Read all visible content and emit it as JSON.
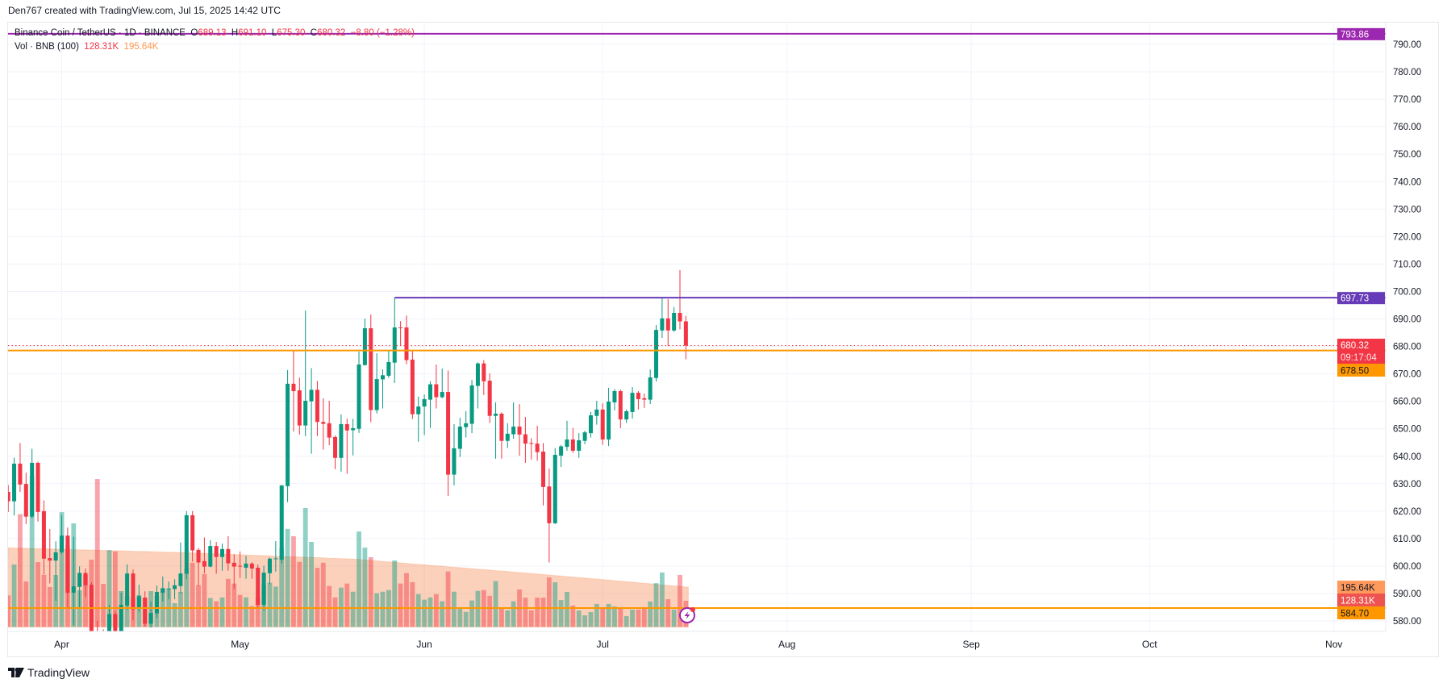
{
  "header": {
    "credit": "Den767 created with TradingView.com, Jul 15, 2025 14:42 UTC"
  },
  "legend": {
    "symbol": "Binance Coin / TetherUS · 1D · BINANCE",
    "o_label": "O",
    "o": "689.13",
    "h_label": "H",
    "h": "691.10",
    "l_label": "L",
    "l": "675.30",
    "c_label": "C",
    "c": "680.32",
    "change": "−8.80 (−1.28%)",
    "vol_title": "Vol · BNB (100)",
    "vol": "128.31K",
    "vol_ma": "195.64K"
  },
  "footer": {
    "logo_text": "TradingView"
  },
  "colors": {
    "up": "#089981",
    "down": "#f23645",
    "orange": "#ff9800",
    "purple_top": "#9c27b0",
    "purple_level": "#673ab7",
    "vol_ma_fill": "rgba(247,124,60,0.35)"
  },
  "chart_data": {
    "type": "candlestick",
    "symbol": "BNBUSDT",
    "interval": "1D",
    "ylim": [
      577.8,
      796
    ],
    "grid": true,
    "price_axis": {
      "ticks": [
        "790.00",
        "780.00",
        "770.00",
        "760.00",
        "750.00",
        "740.00",
        "730.00",
        "720.00",
        "710.00",
        "700.00",
        "690.00",
        "680.00",
        "670.00",
        "660.00",
        "650.00",
        "640.00",
        "630.00",
        "620.00",
        "610.00",
        "600.00",
        "590.00",
        "580.00"
      ]
    },
    "date_axis": [
      {
        "label": "Apr",
        "date": "2025-04-01"
      },
      {
        "label": "May",
        "date": "2025-05-01"
      },
      {
        "label": "Jun",
        "date": "2025-06-01"
      },
      {
        "label": "Jul",
        "date": "2025-07-01"
      },
      {
        "label": "Aug",
        "date": "2025-08-01"
      },
      {
        "label": "Sep",
        "date": "2025-09-01"
      },
      {
        "label": "Oct",
        "date": "2025-10-01"
      },
      {
        "label": "Nov",
        "date": "2025-11-01"
      }
    ],
    "horizontal_lines": [
      {
        "price": 793.86,
        "label": "793.86",
        "color": "#9c27b0"
      },
      {
        "price": 697.73,
        "label": "697.73",
        "color": "#673ab7",
        "from_date": "2025-05-27"
      },
      {
        "price": 678.5,
        "label": "678.50",
        "color": "#ff9800"
      },
      {
        "price": 584.7,
        "label": "584.70",
        "color": "#ff9800"
      }
    ],
    "last_price": {
      "price": 680.32,
      "label": "680.32",
      "countdown": "09:17:04"
    },
    "volume_labels": {
      "volume": "128.31K",
      "volume_ma": "195.64K"
    },
    "columns": [
      "date",
      "open",
      "high",
      "low",
      "close",
      "volume_k",
      "volume_ma_k"
    ],
    "candles": [
      [
        "2025-03-23",
        627,
        629.5,
        619.7,
        623.6,
        155,
        388
      ],
      [
        "2025-03-24",
        623.6,
        639.5,
        618.4,
        637.3,
        306,
        387
      ],
      [
        "2025-03-25",
        637.3,
        644.8,
        627,
        629.7,
        553,
        386
      ],
      [
        "2025-03-26",
        629.9,
        634,
        615.3,
        618,
        223,
        386
      ],
      [
        "2025-03-27",
        618,
        642.7,
        617.4,
        637.6,
        741,
        385
      ],
      [
        "2025-03-28",
        637.6,
        638,
        616.2,
        619.7,
        318,
        384
      ],
      [
        "2025-03-29",
        620,
        623.9,
        597,
        602.7,
        256,
        383
      ],
      [
        "2025-03-30",
        602.9,
        613.5,
        593.7,
        602,
        196,
        382
      ],
      [
        "2025-03-31",
        602,
        609,
        587.4,
        605,
        255,
        382
      ],
      [
        "2025-04-01",
        605,
        618.5,
        604.5,
        611.1,
        563,
        381
      ],
      [
        "2025-04-02",
        611.1,
        614,
        584.9,
        590.3,
        399,
        380
      ],
      [
        "2025-04-03",
        590.3,
        610.7,
        578.5,
        592.6,
        508,
        379
      ],
      [
        "2025-04-04",
        592.4,
        599.9,
        584.9,
        597.5,
        180,
        378
      ],
      [
        "2025-04-05",
        597.5,
        599.1,
        588.8,
        593,
        256,
        378
      ],
      [
        "2025-04-06",
        593.2,
        594,
        565,
        574,
        330,
        377
      ],
      [
        "2025-04-07",
        574,
        580,
        555,
        566,
        725,
        376
      ],
      [
        "2025-04-08",
        575,
        577,
        565,
        570,
        211,
        375
      ],
      [
        "2025-04-09",
        570,
        585.9,
        568,
        582.5,
        377,
        374
      ],
      [
        "2025-04-10",
        582.5,
        583.6,
        572,
        575,
        370,
        374
      ],
      [
        "2025-04-11",
        575,
        590.3,
        573,
        585.9,
        176,
        373
      ],
      [
        "2025-04-12",
        585.6,
        600.6,
        584,
        597.3,
        152,
        372
      ],
      [
        "2025-04-13",
        597.3,
        598.8,
        580.3,
        584.2,
        144,
        371
      ],
      [
        "2025-04-14",
        584.5,
        593.2,
        583.4,
        589,
        156,
        370
      ],
      [
        "2025-04-15",
        588.5,
        590.8,
        578,
        579,
        144,
        370
      ],
      [
        "2025-04-16",
        579,
        587.1,
        577.6,
        582.9,
        176,
        369
      ],
      [
        "2025-04-17",
        582.8,
        592.9,
        581,
        590.6,
        152,
        368
      ],
      [
        "2025-04-18",
        590.3,
        596.2,
        587.1,
        591.8,
        192,
        367
      ],
      [
        "2025-04-19",
        591.6,
        594.4,
        587.9,
        591.8,
        188,
        366
      ],
      [
        "2025-04-20",
        591.6,
        595.2,
        587.9,
        593,
        117,
        366
      ],
      [
        "2025-04-21",
        592.7,
        608.6,
        590,
        597.3,
        172,
        365
      ],
      [
        "2025-04-22",
        597.2,
        620,
        595.2,
        618.5,
        287,
        364
      ],
      [
        "2025-04-23",
        618.5,
        620,
        601.6,
        605.7,
        315,
        363
      ],
      [
        "2025-04-24",
        605.9,
        606.6,
        592.7,
        601.3,
        205,
        362
      ],
      [
        "2025-04-25",
        601.8,
        610.4,
        597.4,
        599.8,
        260,
        361
      ],
      [
        "2025-04-26",
        599.8,
        609.4,
        599.6,
        607.3,
        142,
        360
      ],
      [
        "2025-04-27",
        607.3,
        608.8,
        597.2,
        603.3,
        126,
        358
      ],
      [
        "2025-04-28",
        603.3,
        608.2,
        598.3,
        606.2,
        145,
        357
      ],
      [
        "2025-04-29",
        606.2,
        610.9,
        598.3,
        601,
        236,
        356
      ],
      [
        "2025-04-30",
        601.2,
        604.3,
        591.6,
        599.8,
        213,
        355
      ],
      [
        "2025-05-01",
        600.1,
        605.3,
        595.7,
        600,
        157,
        354
      ],
      [
        "2025-05-02",
        599.4,
        603.7,
        595.4,
        600.9,
        145,
        353
      ],
      [
        "2025-05-03",
        600.9,
        601.4,
        595.4,
        599.1,
        102,
        352
      ],
      [
        "2025-05-04",
        599.4,
        600.6,
        584.9,
        585.9,
        145,
        351
      ],
      [
        "2025-05-05",
        585.9,
        600.1,
        583.7,
        597.6,
        205,
        350
      ],
      [
        "2025-05-06",
        597.4,
        603.1,
        593.4,
        602.7,
        217,
        349
      ],
      [
        "2025-05-07",
        602.5,
        609.1,
        598,
        602.8,
        198,
        347
      ],
      [
        "2025-05-08",
        602.3,
        629.4,
        600.9,
        629.4,
        385,
        346
      ],
      [
        "2025-05-09",
        629.1,
        671.4,
        623.3,
        666.4,
        481,
        345
      ],
      [
        "2025-05-10",
        666.4,
        678.7,
        649,
        663.7,
        445,
        344
      ],
      [
        "2025-05-11",
        664,
        668.6,
        647.9,
        651.2,
        319,
        343
      ],
      [
        "2025-05-12",
        651.2,
        693.1,
        647.3,
        660.2,
        583,
        342
      ],
      [
        "2025-05-13",
        660,
        672.1,
        640.9,
        664.2,
        417,
        341
      ],
      [
        "2025-05-14",
        664.2,
        667.4,
        647.3,
        652.5,
        290,
        340
      ],
      [
        "2025-05-15",
        652.5,
        661.1,
        642.4,
        651.8,
        315,
        339
      ],
      [
        "2025-05-16",
        652,
        660.2,
        644,
        646.8,
        201,
        337
      ],
      [
        "2025-05-17",
        647,
        647.5,
        635.3,
        639.4,
        145,
        336
      ],
      [
        "2025-05-18",
        639.4,
        655.2,
        634.4,
        651.7,
        193,
        335
      ],
      [
        "2025-05-19",
        651.7,
        653.7,
        633.6,
        649.4,
        213,
        334
      ],
      [
        "2025-05-20",
        649.5,
        653.6,
        640.3,
        650.2,
        173,
        333
      ],
      [
        "2025-05-21",
        650,
        678.1,
        648.5,
        673.4,
        468,
        331
      ],
      [
        "2025-05-22",
        673.2,
        690.1,
        673,
        686.6,
        389,
        328
      ],
      [
        "2025-05-23",
        686.6,
        691.6,
        652.4,
        656.8,
        342,
        326
      ],
      [
        "2025-05-24",
        656.8,
        677.5,
        655.6,
        668.1,
        165,
        324
      ],
      [
        "2025-05-25",
        668,
        671.6,
        657.4,
        669.5,
        173,
        321
      ],
      [
        "2025-05-26",
        669.3,
        678.4,
        668.5,
        674.3,
        181,
        319
      ],
      [
        "2025-05-27",
        674.1,
        697.7,
        666.7,
        686.9,
        326,
        317
      ],
      [
        "2025-05-28",
        686.9,
        689.2,
        680.4,
        686.7,
        213,
        314
      ],
      [
        "2025-05-29",
        686.9,
        691.2,
        673.5,
        675,
        264,
        312
      ],
      [
        "2025-05-30",
        675.2,
        678.4,
        653.5,
        655.3,
        220,
        309
      ],
      [
        "2025-05-31",
        655.3,
        661.7,
        645.3,
        658.1,
        161,
        307
      ],
      [
        "2025-06-01",
        658.1,
        662.5,
        647.7,
        660.8,
        134,
        305
      ],
      [
        "2025-06-02",
        660.6,
        667.3,
        650.3,
        666.2,
        145,
        302
      ],
      [
        "2025-06-03",
        666.2,
        673.4,
        657.4,
        661.5,
        161,
        300
      ],
      [
        "2025-06-04",
        661.5,
        671.9,
        661.1,
        663.4,
        126,
        298
      ],
      [
        "2025-06-05",
        663.4,
        671.2,
        625.5,
        633.3,
        272,
        295
      ],
      [
        "2025-06-06",
        633.3,
        651.7,
        629.4,
        642.9,
        173,
        293
      ],
      [
        "2025-06-07",
        642.7,
        654,
        639.7,
        650.8,
        90,
        291
      ],
      [
        "2025-06-08",
        650.6,
        656.4,
        646.8,
        652,
        74,
        288
      ],
      [
        "2025-06-09",
        651.8,
        667.8,
        648.4,
        665.8,
        130,
        286
      ],
      [
        "2025-06-10",
        665.6,
        674.2,
        657.4,
        673.8,
        177,
        283
      ],
      [
        "2025-06-11",
        673.8,
        675,
        662.3,
        667.3,
        181,
        281
      ],
      [
        "2025-06-12",
        667.5,
        670.2,
        652.1,
        654.7,
        153,
        279
      ],
      [
        "2025-06-13",
        654.7,
        659.6,
        639.1,
        655.5,
        225,
        276
      ],
      [
        "2025-06-14",
        655.5,
        656,
        639.1,
        645.6,
        90,
        274
      ],
      [
        "2025-06-15",
        645.6,
        652,
        643,
        648.2,
        82,
        272
      ],
      [
        "2025-06-16",
        648,
        659.6,
        646.4,
        650.8,
        126,
        269
      ],
      [
        "2025-06-17",
        650.8,
        659,
        640.2,
        647.9,
        184,
        267
      ],
      [
        "2025-06-18",
        648,
        654.3,
        637.6,
        644.6,
        144,
        265
      ],
      [
        "2025-06-19",
        644.8,
        646.6,
        638.8,
        644.6,
        82,
        262
      ],
      [
        "2025-06-20",
        644.6,
        651.1,
        638.3,
        641.5,
        144,
        260
      ],
      [
        "2025-06-21",
        641.7,
        644.8,
        622.1,
        628.8,
        144,
        257
      ],
      [
        "2025-06-22",
        629,
        635.5,
        601.3,
        615.6,
        243,
        255
      ],
      [
        "2025-06-23",
        615.6,
        642.9,
        615.3,
        640.5,
        219,
        252
      ],
      [
        "2025-06-24",
        640.2,
        644.1,
        636.1,
        643.6,
        132,
        250
      ],
      [
        "2025-06-25",
        643.4,
        652.9,
        642,
        646.1,
        172,
        247
      ],
      [
        "2025-06-26",
        646.1,
        650.3,
        641.2,
        642,
        105,
        245
      ],
      [
        "2025-06-27",
        642,
        648.4,
        639.4,
        645.8,
        81,
        242
      ],
      [
        "2025-06-28",
        645.6,
        649.3,
        644.4,
        648.7,
        57,
        240
      ],
      [
        "2025-06-29",
        648.4,
        656.1,
        646.8,
        654.9,
        73,
        237
      ],
      [
        "2025-06-30",
        654.7,
        660.2,
        651.5,
        657,
        113,
        235
      ],
      [
        "2025-07-01",
        657,
        659.3,
        644.1,
        646.1,
        97,
        232
      ],
      [
        "2025-07-02",
        646.1,
        664.9,
        643.7,
        659.9,
        113,
        230
      ],
      [
        "2025-07-03",
        659.6,
        664.5,
        656.7,
        663.7,
        101,
        227
      ],
      [
        "2025-07-04",
        663.7,
        664.3,
        650.2,
        653.4,
        93,
        225
      ],
      [
        "2025-07-05",
        653.4,
        657,
        652.1,
        656.4,
        53,
        222
      ],
      [
        "2025-07-06",
        656.1,
        665.2,
        653.7,
        663.1,
        85,
        220
      ],
      [
        "2025-07-07",
        663.1,
        663.7,
        657,
        660.8,
        85,
        217
      ],
      [
        "2025-07-08",
        661.1,
        662.8,
        657.6,
        660.6,
        93,
        214
      ],
      [
        "2025-07-09",
        660.6,
        671.6,
        659,
        668.7,
        125,
        212
      ],
      [
        "2025-07-10",
        668.5,
        687.8,
        667.2,
        686,
        215,
        209
      ],
      [
        "2025-07-11",
        685.8,
        697.7,
        683.1,
        690.2,
        267,
        206
      ],
      [
        "2025-07-12",
        690.2,
        697.2,
        680.1,
        685.8,
        136,
        204
      ],
      [
        "2025-07-13",
        685.8,
        694.3,
        685.3,
        692.2,
        85,
        201
      ],
      [
        "2025-07-14",
        692.2,
        707.8,
        686.2,
        689.1,
        255,
        199
      ],
      [
        "2025-07-15",
        689.13,
        691.1,
        675.3,
        680.32,
        128.31,
        195.64
      ]
    ]
  }
}
